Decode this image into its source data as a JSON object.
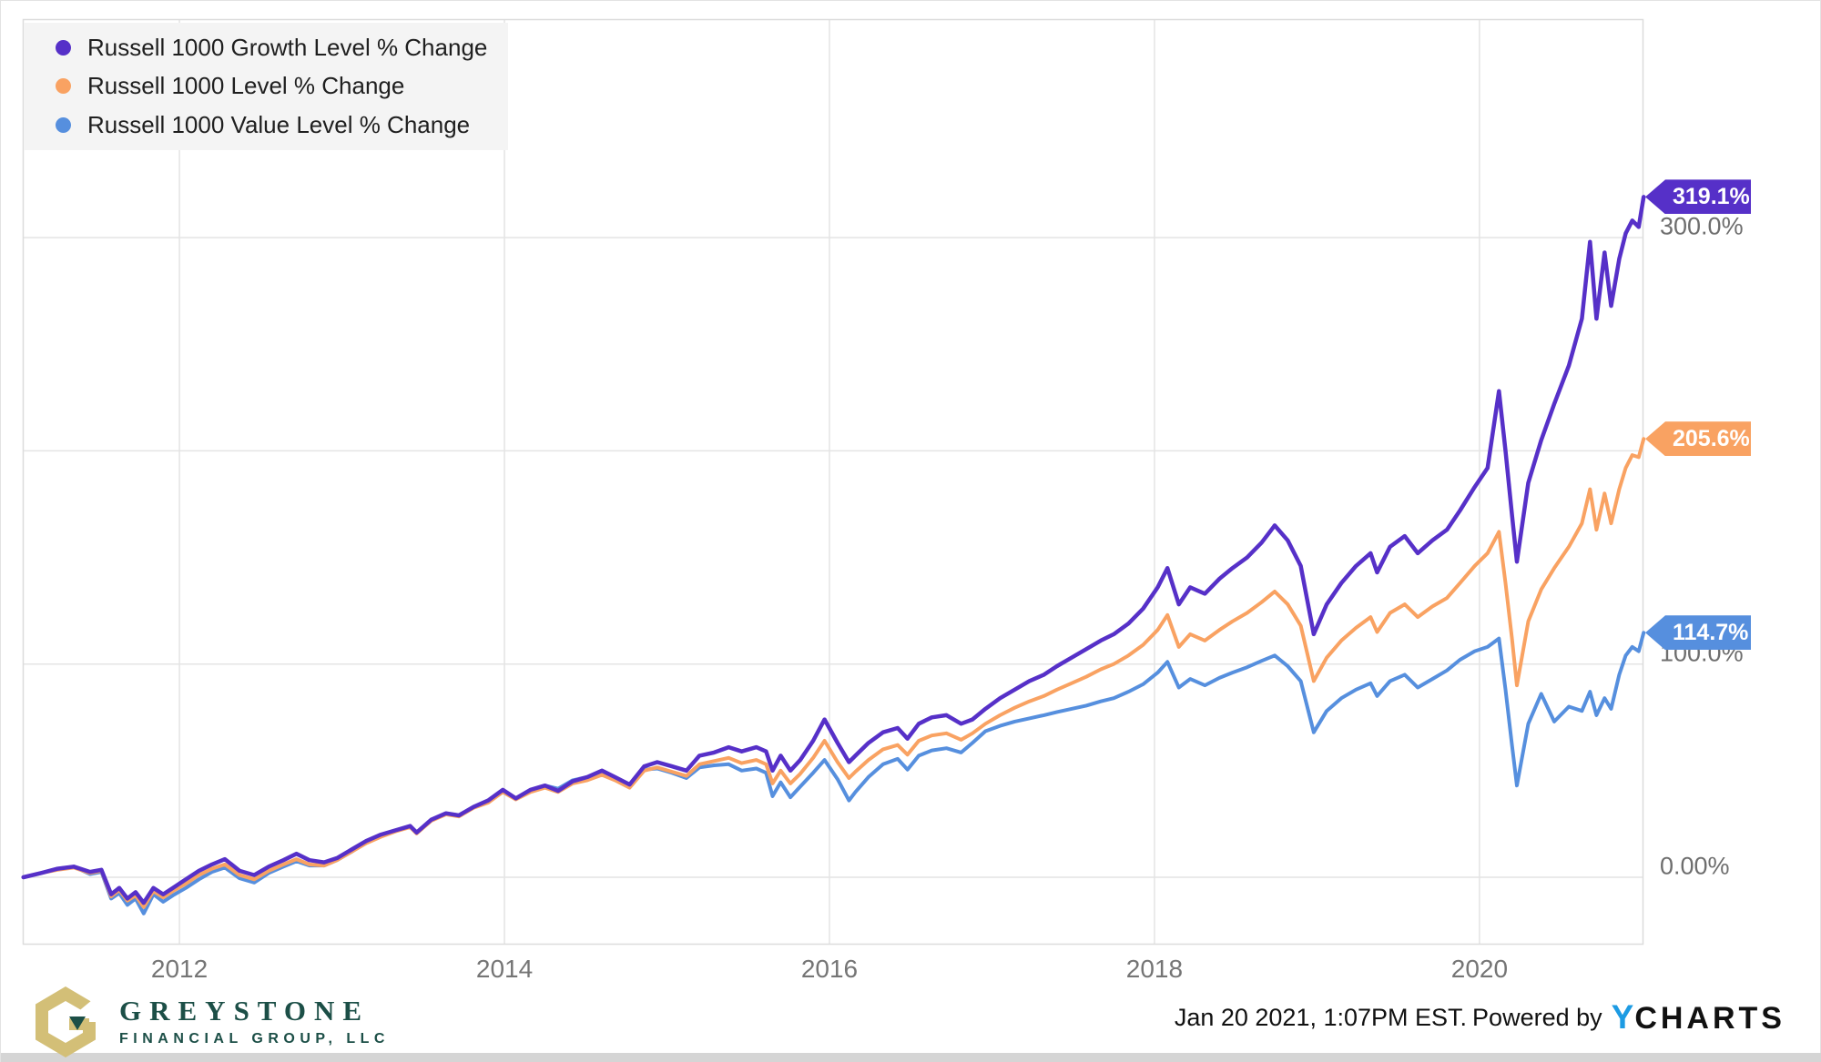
{
  "chart_data": {
    "type": "line",
    "title": "",
    "grid": true,
    "legend_position": "top-left",
    "xlim": [
      2011.036,
      2021.009
    ],
    "ylim": [
      -31.6,
      402.5
    ],
    "x_ticks": [
      {
        "value": 2012,
        "label": "2012"
      },
      {
        "value": 2014,
        "label": "2014"
      },
      {
        "value": 2016,
        "label": "2016"
      },
      {
        "value": 2018,
        "label": "2018"
      },
      {
        "value": 2020,
        "label": "2020"
      }
    ],
    "y_ticks": [
      {
        "value": 0,
        "label": "0.00%"
      },
      {
        "value": 100,
        "label": "100.0%"
      },
      {
        "value": 200,
        "label": ""
      },
      {
        "value": 300,
        "label": "300.0%"
      }
    ],
    "x": [
      2011.04,
      2011.15,
      2011.25,
      2011.35,
      2011.45,
      2011.52,
      2011.58,
      2011.63,
      2011.68,
      2011.73,
      2011.78,
      2011.84,
      2011.9,
      2011.96,
      2012.04,
      2012.12,
      2012.2,
      2012.28,
      2012.37,
      2012.46,
      2012.55,
      2012.64,
      2012.72,
      2012.8,
      2012.89,
      2012.97,
      2013.06,
      2013.15,
      2013.24,
      2013.33,
      2013.42,
      2013.46,
      2013.55,
      2013.64,
      2013.72,
      2013.81,
      2013.9,
      2013.99,
      2014.07,
      2014.16,
      2014.25,
      2014.33,
      2014.42,
      2014.51,
      2014.6,
      2014.68,
      2014.77,
      2014.86,
      2014.94,
      2015.03,
      2015.12,
      2015.2,
      2015.29,
      2015.38,
      2015.46,
      2015.55,
      2015.61,
      2015.65,
      2015.7,
      2015.76,
      2015.82,
      2015.9,
      2015.97,
      2016.05,
      2016.12,
      2016.16,
      2016.24,
      2016.33,
      2016.42,
      2016.48,
      2016.55,
      2016.63,
      2016.72,
      2016.81,
      2016.88,
      2016.96,
      2017.05,
      2017.14,
      2017.23,
      2017.32,
      2017.4,
      2017.49,
      2017.58,
      2017.67,
      2017.75,
      2017.84,
      2017.93,
      2018.02,
      2018.08,
      2018.15,
      2018.22,
      2018.31,
      2018.4,
      2018.48,
      2018.57,
      2018.66,
      2018.74,
      2018.82,
      2018.9,
      2018.98,
      2019.06,
      2019.15,
      2019.24,
      2019.33,
      2019.37,
      2019.45,
      2019.54,
      2019.62,
      2019.71,
      2019.8,
      2019.88,
      2019.97,
      2020.05,
      2020.12,
      2020.16,
      2020.2,
      2020.23,
      2020.3,
      2020.38,
      2020.46,
      2020.55,
      2020.63,
      2020.68,
      2020.72,
      2020.77,
      2020.81,
      2020.86,
      2020.9,
      2020.94,
      2020.98,
      2021.01
    ],
    "series": [
      {
        "name": "Russell 1000 Growth Level % Change",
        "color": "#5630C8",
        "end_label": "319.1%",
        "end_value": 319.1,
        "values": [
          0,
          2,
          4,
          5,
          2.5,
          3.5,
          -8,
          -5,
          -10,
          -7,
          -12,
          -5,
          -8,
          -5,
          -1,
          3,
          6,
          8.5,
          3,
          1,
          5,
          8,
          11,
          8,
          7,
          9,
          13,
          17,
          20,
          22,
          24,
          21,
          27,
          30,
          29,
          33,
          36,
          41,
          37,
          41,
          43,
          40.5,
          45,
          47,
          50,
          47,
          43.5,
          52,
          54,
          52,
          50,
          57,
          58.5,
          61,
          59,
          61,
          59,
          50,
          57,
          50,
          55,
          64,
          74,
          63,
          54,
          57,
          63,
          68,
          70,
          65,
          72,
          75,
          76,
          72,
          74,
          79,
          84,
          88,
          92,
          95,
          99,
          103,
          107,
          111,
          114,
          119,
          126,
          136,
          145,
          128,
          136,
          133,
          140,
          145,
          150,
          157,
          165,
          158,
          146,
          114,
          128,
          138,
          146,
          152,
          143,
          155,
          160,
          152,
          158,
          163,
          172,
          183,
          192,
          228,
          200,
          170,
          148,
          185,
          205,
          222,
          240,
          262,
          298,
          262,
          293,
          268,
          290,
          302,
          308,
          305,
          319.1
        ]
      },
      {
        "name": "Russell 1000 Level % Change",
        "color": "#F9A262",
        "end_label": "205.6%",
        "end_value": 205.6,
        "values": [
          0,
          2,
          3.5,
          4.5,
          2,
          3,
          -9,
          -6,
          -11,
          -8.5,
          -14,
          -6.5,
          -9.5,
          -6.5,
          -3,
          1,
          4,
          6,
          1,
          -1,
          3,
          6,
          8.5,
          6,
          5.5,
          8,
          12,
          16,
          19,
          21.5,
          23.5,
          20.5,
          26.5,
          29.5,
          28.5,
          32.5,
          35,
          40,
          36.5,
          40,
          42,
          40,
          44,
          45.5,
          48,
          45.5,
          42,
          50,
          51.5,
          49.5,
          47.5,
          53,
          54.5,
          56,
          53.5,
          55,
          53,
          44,
          50,
          44,
          48.5,
          56,
          64,
          54,
          46.5,
          49.5,
          55,
          60,
          62,
          57.5,
          64,
          66.5,
          67.5,
          64.5,
          67.5,
          72,
          76,
          79.5,
          82.5,
          85,
          88,
          91,
          94,
          97.5,
          100,
          104,
          109,
          116,
          123,
          108,
          114,
          111,
          116,
          120,
          124,
          129,
          134,
          128,
          118,
          92,
          103,
          111,
          117,
          122,
          115,
          124,
          128,
          122,
          127,
          131,
          138,
          146,
          152,
          162,
          138,
          112,
          90,
          120,
          135,
          145,
          155,
          166,
          182,
          163,
          180,
          166,
          182,
          192,
          198,
          197,
          205.6
        ]
      },
      {
        "name": "Russell 1000 Value Level % Change",
        "color": "#568FDE",
        "end_label": "114.7%",
        "end_value": 114.7,
        "values": [
          0,
          2,
          4,
          5,
          1.5,
          2.5,
          -10,
          -7.5,
          -13,
          -10,
          -17,
          -8,
          -11.5,
          -8.5,
          -5,
          -1,
          2.5,
          4.5,
          -0.5,
          -2.5,
          2,
          5,
          7.5,
          5.5,
          5.5,
          8,
          12,
          16.5,
          19.5,
          22,
          24,
          21,
          27,
          30,
          29,
          33,
          35.5,
          40,
          37,
          41,
          43,
          41.5,
          45.5,
          47,
          49,
          46.5,
          42.5,
          50.5,
          51,
          49,
          46.5,
          51.5,
          52.5,
          53,
          50,
          51,
          49,
          38,
          44.5,
          37.5,
          42.5,
          49,
          55,
          46,
          36,
          40,
          47,
          53,
          55.5,
          50.5,
          57,
          59.5,
          60.5,
          58.5,
          63,
          68.5,
          71,
          73,
          74.5,
          76,
          77.5,
          79,
          80.5,
          82.5,
          84,
          87,
          90.5,
          96,
          101,
          89,
          93,
          90,
          93.5,
          96,
          98.5,
          101.5,
          104,
          99,
          92,
          68,
          78,
          84,
          88,
          91,
          85,
          92,
          95,
          89,
          93,
          97,
          102,
          106,
          108,
          112,
          88,
          62,
          43,
          72,
          86,
          73,
          80,
          78,
          87,
          76,
          84,
          79,
          95,
          104,
          108,
          106,
          114.7
        ]
      }
    ]
  },
  "theme": {
    "grid_color": "#e4e4e4",
    "plot_border_color": "#dcdcdc",
    "axis_text_color": "#6e6e6e",
    "legend_bg": "#f4f4f4"
  },
  "footer": {
    "timestamp": "Jan 20 2021, 1:07PM EST.",
    "powered_by": "Powered by",
    "ycharts_y": "Y",
    "ycharts_rest": "CHARTS"
  },
  "branding": {
    "company_name": "GREYSTONE",
    "company_subtitle": "FINANCIAL GROUP, LLC"
  }
}
